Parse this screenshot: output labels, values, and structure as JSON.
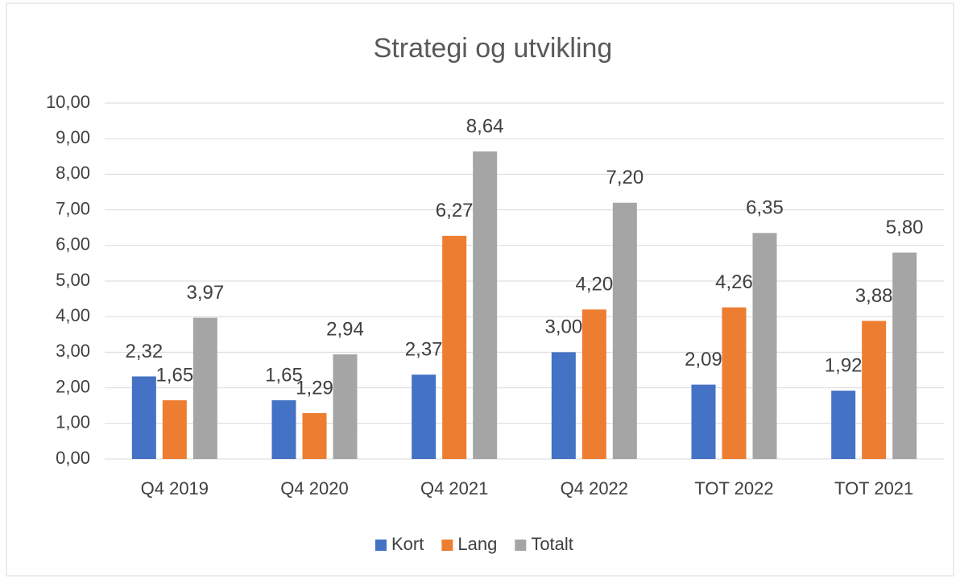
{
  "chart_data": {
    "type": "bar",
    "title": "Strategi og utvikling",
    "categories": [
      "Q4 2019",
      "Q4 2020",
      "Q4 2021",
      "Q4 2022",
      "TOT 2022",
      "TOT 2021"
    ],
    "series": [
      {
        "name": "Kort",
        "color": "#4472c4",
        "values": [
          2.32,
          1.65,
          2.37,
          3.0,
          2.09,
          1.92
        ],
        "value_labels": [
          "2,32",
          "1,65",
          "2,37",
          "3,00",
          "2,09",
          "1,92"
        ]
      },
      {
        "name": "Lang",
        "color": "#ed7d31",
        "values": [
          1.65,
          1.29,
          6.27,
          4.2,
          4.26,
          3.88
        ],
        "value_labels": [
          "1,65",
          "1,29",
          "6,27",
          "4,20",
          "4,26",
          "3,88"
        ]
      },
      {
        "name": "Totalt",
        "color": "#a5a5a5",
        "values": [
          3.97,
          2.94,
          8.64,
          7.2,
          6.35,
          5.8
        ],
        "value_labels": [
          "3,97",
          "2,94",
          "8,64",
          "7,20",
          "6,35",
          "5,80"
        ]
      }
    ],
    "ylim": [
      0,
      10
    ],
    "yticks": [
      {
        "value": 0,
        "label": "0,00"
      },
      {
        "value": 1,
        "label": "1,00"
      },
      {
        "value": 2,
        "label": "2,00"
      },
      {
        "value": 3,
        "label": "3,00"
      },
      {
        "value": 4,
        "label": "4,00"
      },
      {
        "value": 5,
        "label": "5,00"
      },
      {
        "value": 6,
        "label": "6,00"
      },
      {
        "value": 7,
        "label": "7,00"
      },
      {
        "value": 8,
        "label": "8,00"
      },
      {
        "value": 9,
        "label": "9,00"
      },
      {
        "value": 10,
        "label": "10,00"
      }
    ],
    "grid": true,
    "legend": "bottom"
  }
}
